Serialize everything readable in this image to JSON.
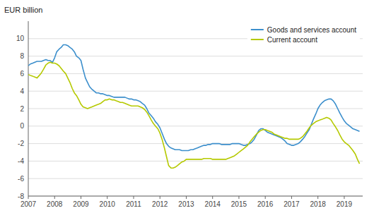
{
  "chart_data": {
    "type": "line",
    "y_label": "EUR billion",
    "x": [
      2007.0,
      2007.08,
      2007.17,
      2007.25,
      2007.33,
      2007.42,
      2007.5,
      2007.58,
      2007.67,
      2007.75,
      2007.83,
      2007.92,
      2008.0,
      2008.08,
      2008.17,
      2008.25,
      2008.33,
      2008.42,
      2008.5,
      2008.58,
      2008.67,
      2008.75,
      2008.83,
      2008.92,
      2009.0,
      2009.08,
      2009.17,
      2009.25,
      2009.33,
      2009.42,
      2009.5,
      2009.58,
      2009.67,
      2009.75,
      2009.83,
      2009.92,
      2010.0,
      2010.08,
      2010.17,
      2010.25,
      2010.33,
      2010.42,
      2010.5,
      2010.58,
      2010.67,
      2010.75,
      2010.83,
      2010.92,
      2011.0,
      2011.08,
      2011.17,
      2011.25,
      2011.33,
      2011.42,
      2011.5,
      2011.58,
      2011.67,
      2011.75,
      2011.83,
      2011.92,
      2012.0,
      2012.08,
      2012.17,
      2012.25,
      2012.33,
      2012.42,
      2012.5,
      2012.58,
      2012.67,
      2012.75,
      2012.83,
      2012.92,
      2013.0,
      2013.08,
      2013.17,
      2013.25,
      2013.33,
      2013.42,
      2013.5,
      2013.58,
      2013.67,
      2013.75,
      2013.83,
      2013.92,
      2014.0,
      2014.08,
      2014.17,
      2014.25,
      2014.33,
      2014.42,
      2014.5,
      2014.58,
      2014.67,
      2014.75,
      2014.83,
      2014.92,
      2015.0,
      2015.08,
      2015.17,
      2015.25,
      2015.33,
      2015.42,
      2015.5,
      2015.58,
      2015.67,
      2015.75,
      2015.83,
      2015.92,
      2016.0,
      2016.08,
      2016.17,
      2016.25,
      2016.33,
      2016.42,
      2016.5,
      2016.58,
      2016.67,
      2016.75,
      2016.83,
      2016.92,
      2017.0,
      2017.08,
      2017.17,
      2017.25,
      2017.33,
      2017.42,
      2017.5,
      2017.58,
      2017.67,
      2017.75,
      2017.83,
      2017.92,
      2018.0,
      2018.08,
      2018.17,
      2018.25,
      2018.33,
      2018.42,
      2018.5,
      2018.58,
      2018.67,
      2018.75,
      2018.83,
      2018.92,
      2019.0,
      2019.08,
      2019.17,
      2019.25,
      2019.33,
      2019.42,
      2019.5,
      2019.58
    ],
    "series": [
      {
        "name": "Goods and services account",
        "color": "#3c8fcc",
        "values": [
          6.9,
          7.1,
          7.2,
          7.3,
          7.4,
          7.4,
          7.4,
          7.5,
          7.6,
          7.5,
          7.5,
          7.3,
          7.8,
          8.5,
          8.8,
          9.0,
          9.3,
          9.3,
          9.2,
          9.0,
          8.8,
          8.5,
          8.0,
          7.8,
          7.5,
          6.5,
          5.5,
          5.0,
          4.5,
          4.2,
          4.0,
          3.8,
          3.8,
          3.7,
          3.7,
          3.6,
          3.5,
          3.5,
          3.4,
          3.3,
          3.3,
          3.3,
          3.3,
          3.3,
          3.3,
          3.2,
          3.1,
          3.1,
          3.0,
          3.0,
          2.9,
          2.8,
          2.6,
          2.4,
          2.0,
          1.5,
          1.2,
          0.9,
          0.5,
          0.2,
          -0.2,
          -0.8,
          -1.5,
          -2.0,
          -2.3,
          -2.5,
          -2.6,
          -2.7,
          -2.7,
          -2.7,
          -2.8,
          -2.8,
          -2.8,
          -2.8,
          -2.7,
          -2.7,
          -2.6,
          -2.5,
          -2.4,
          -2.3,
          -2.2,
          -2.2,
          -2.1,
          -2.1,
          -2.0,
          -2.0,
          -2.0,
          -2.0,
          -2.1,
          -2.1,
          -2.1,
          -2.1,
          -2.1,
          -2.0,
          -2.0,
          -2.0,
          -2.0,
          -2.1,
          -2.2,
          -2.2,
          -2.1,
          -2.0,
          -1.8,
          -1.5,
          -1.0,
          -0.5,
          -0.3,
          -0.3,
          -0.5,
          -0.7,
          -0.8,
          -0.9,
          -1.0,
          -1.1,
          -1.2,
          -1.3,
          -1.5,
          -1.7,
          -2.0,
          -2.1,
          -2.2,
          -2.2,
          -2.1,
          -2.0,
          -1.8,
          -1.5,
          -1.2,
          -0.8,
          -0.4,
          0.2,
          0.8,
          1.4,
          2.0,
          2.4,
          2.7,
          2.9,
          3.0,
          3.1,
          3.1,
          2.9,
          2.5,
          2.0,
          1.5,
          1.0,
          0.6,
          0.3,
          0.1,
          -0.1,
          -0.3,
          -0.4,
          -0.5,
          -0.6
        ]
      },
      {
        "name": "Current account",
        "color": "#b5c900",
        "values": [
          5.9,
          5.8,
          5.7,
          5.6,
          5.5,
          5.8,
          6.1,
          6.5,
          7.0,
          7.2,
          7.3,
          7.2,
          7.2,
          7.1,
          6.9,
          6.6,
          6.3,
          6.0,
          5.5,
          5.0,
          4.3,
          3.8,
          3.5,
          3.0,
          2.5,
          2.2,
          2.1,
          2.0,
          2.1,
          2.2,
          2.3,
          2.4,
          2.5,
          2.6,
          2.8,
          3.0,
          3.0,
          3.1,
          3.0,
          3.0,
          2.9,
          2.8,
          2.7,
          2.7,
          2.6,
          2.5,
          2.4,
          2.3,
          2.3,
          2.3,
          2.3,
          2.2,
          2.1,
          1.9,
          1.6,
          1.2,
          0.7,
          0.3,
          0.0,
          -0.3,
          -0.8,
          -1.5,
          -2.5,
          -3.5,
          -4.5,
          -4.8,
          -4.8,
          -4.7,
          -4.5,
          -4.3,
          -4.1,
          -4.0,
          -3.8,
          -3.8,
          -3.8,
          -3.8,
          -3.8,
          -3.8,
          -3.8,
          -3.8,
          -3.7,
          -3.7,
          -3.7,
          -3.7,
          -3.8,
          -3.8,
          -3.8,
          -3.8,
          -3.8,
          -3.8,
          -3.8,
          -3.7,
          -3.6,
          -3.5,
          -3.4,
          -3.2,
          -3.0,
          -2.8,
          -2.6,
          -2.4,
          -2.2,
          -1.8,
          -1.5,
          -1.2,
          -0.9,
          -0.7,
          -0.5,
          -0.4,
          -0.4,
          -0.5,
          -0.6,
          -0.7,
          -0.9,
          -1.0,
          -1.1,
          -1.2,
          -1.3,
          -1.4,
          -1.4,
          -1.5,
          -1.5,
          -1.5,
          -1.5,
          -1.5,
          -1.4,
          -1.2,
          -0.9,
          -0.6,
          -0.2,
          0.1,
          0.3,
          0.5,
          0.6,
          0.7,
          0.8,
          0.9,
          1.0,
          0.9,
          0.7,
          0.3,
          -0.1,
          -0.5,
          -1.0,
          -1.5,
          -1.8,
          -2.0,
          -2.2,
          -2.5,
          -2.8,
          -3.2,
          -3.8,
          -4.3
        ]
      }
    ],
    "xlim": [
      2007,
      2019.7
    ],
    "xticks": [
      2007,
      2008,
      2009,
      2010,
      2011,
      2012,
      2013,
      2014,
      2015,
      2016,
      2017,
      2018,
      2019
    ],
    "ylim": [
      -8,
      12
    ],
    "yticks": [
      -8,
      -6,
      -4,
      -2,
      0,
      2,
      4,
      6,
      8,
      10
    ],
    "grid": true,
    "legend": "upper right"
  }
}
